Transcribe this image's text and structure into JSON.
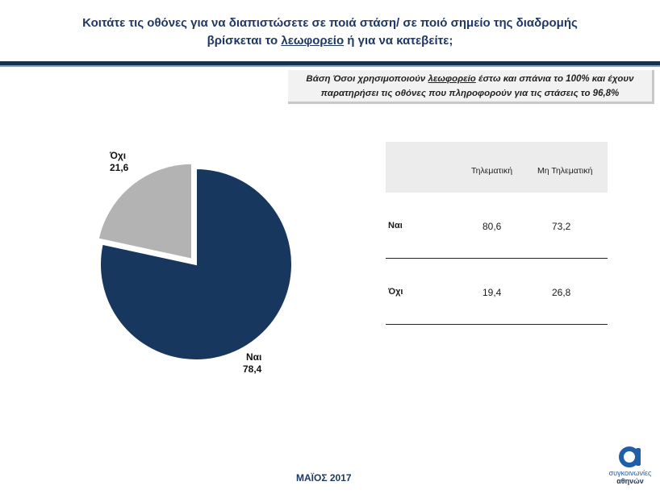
{
  "title": {
    "line1": "Κοιτάτε τις οθόνες για να διαπιστώσετε σε ποιά στάση/ σε ποιό σημείο της διαδρομής",
    "line2_pre": "βρίσκεται το ",
    "line2_u": "λεωφορείο",
    "line2_post": " ή για να κατεβείτε;"
  },
  "note": {
    "pre": "Βάση Όσοι χρησιμοποιούν ",
    "u": "λεωφορείο",
    "post": " έστω και σπάνια το 100% και έχουν",
    "line2": "παρατηρήσει τις οθόνες που πληροφορούν για τις στάσεις το 96,8%"
  },
  "chart_data": [
    {
      "type": "pie",
      "categories": [
        "Ναι",
        "Όχι"
      ],
      "values": [
        78.4,
        21.6
      ],
      "value_labels": [
        "78,4",
        "21,6"
      ],
      "colors": [
        "#17375e",
        "#b3b3b3"
      ],
      "exploded": "Όχι"
    },
    {
      "type": "table",
      "columns": [
        "",
        "Τηλεματική",
        "Μη Τηλεματική"
      ],
      "rows": [
        {
          "label": "Ναι",
          "values": [
            "80,6",
            "73,2"
          ]
        },
        {
          "label": "Όχι",
          "values": [
            "19,4",
            "26,8"
          ]
        }
      ]
    }
  ],
  "footer": "ΜΑΪΟΣ 2017",
  "logo": {
    "icon": "alpha-logo-icon",
    "line1": "συγκοινωνίες",
    "line2": "αθηνών",
    "color": "#1f5fa8"
  }
}
